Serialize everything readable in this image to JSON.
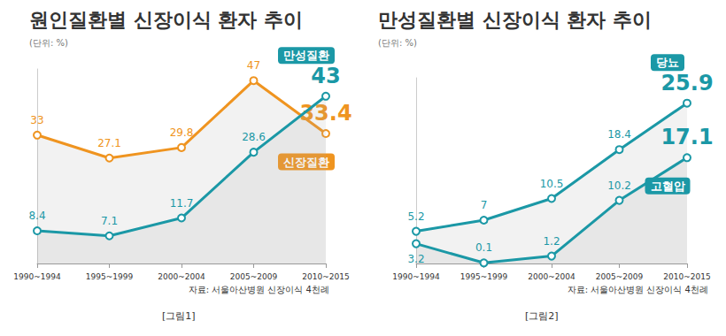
{
  "chart_data": [
    {
      "type": "line",
      "title": "원인질환별 신장이식 환자 추이",
      "subtitle": "(단위: %)",
      "source": "자료: 서울아산병원 신장이식 4천례",
      "caption": "[그림1]",
      "categories": [
        "1990~1994",
        "1995~1999",
        "2000~2004",
        "2005~2009",
        "2010~2015"
      ],
      "series": [
        {
          "name": "신장질환",
          "color": "#ef9420",
          "values": [
            33,
            27.1,
            29.8,
            47,
            33.4
          ]
        },
        {
          "name": "만성질환",
          "color": "#1b98a6",
          "values": [
            8.4,
            7.1,
            11.7,
            28.6,
            43
          ]
        }
      ],
      "ylim": [
        0,
        50
      ],
      "grid": false,
      "tick_labels": "x",
      "data_labels": true,
      "marker": "circle"
    },
    {
      "type": "line",
      "title": "만성질환별 신장이식 환자 추이",
      "subtitle": "(단위: %)",
      "source": "자료: 서울아산병원 신장이식 4천례",
      "caption": "[그림2]",
      "categories": [
        "1990~1994",
        "1995~1999",
        "2000~2004",
        "2005~2009",
        "2010~2015"
      ],
      "series": [
        {
          "name": "당뇨",
          "color": "#1b98a6",
          "values": [
            5.2,
            7,
            10.5,
            18.4,
            25.9
          ]
        },
        {
          "name": "고혈압",
          "color": "#1b98a6",
          "values": [
            3.2,
            0.1,
            1.2,
            10.2,
            17.1
          ]
        }
      ],
      "ylim": [
        0,
        30
      ],
      "grid": false,
      "tick_labels": "x",
      "data_labels": true,
      "marker": "circle"
    }
  ]
}
